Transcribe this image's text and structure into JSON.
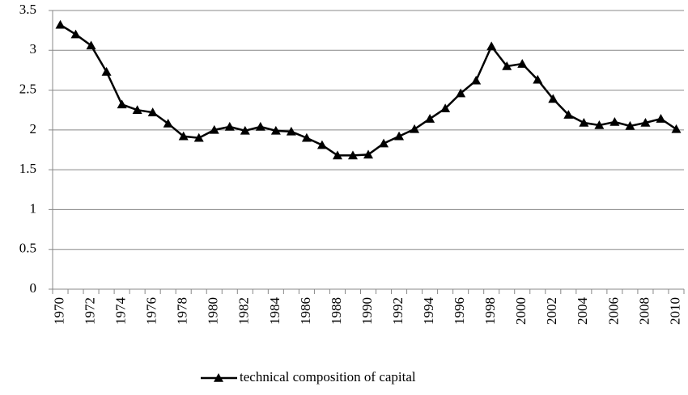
{
  "chart_data": {
    "type": "line",
    "categories": [
      "1970",
      null,
      "1972",
      null,
      "1974",
      null,
      "1976",
      null,
      "1978",
      null,
      "1980",
      null,
      "1982",
      null,
      "1984",
      null,
      "1986",
      null,
      "1988",
      null,
      "1990",
      null,
      "1992",
      null,
      "1994",
      null,
      "1996",
      null,
      "1998",
      null,
      "2000",
      null,
      "2002",
      null,
      "2004",
      null,
      "2006",
      null,
      "2008",
      null,
      "2010"
    ],
    "series": [
      {
        "name": "technical composition of capital",
        "color": "#000000",
        "values": [
          3.32,
          3.2,
          3.06,
          2.73,
          2.32,
          2.25,
          2.22,
          2.08,
          1.92,
          1.9,
          2.0,
          2.04,
          1.99,
          2.04,
          1.99,
          1.98,
          1.9,
          1.81,
          1.68,
          1.68,
          1.69,
          1.83,
          1.92,
          2.01,
          2.14,
          2.27,
          2.46,
          2.62,
          3.05,
          2.8,
          2.83,
          2.63,
          2.39,
          2.19,
          2.09,
          2.06,
          2.1,
          2.05,
          2.09,
          2.14,
          2.01
        ]
      }
    ],
    "ylim": [
      0,
      3.5
    ],
    "yticks": [
      0,
      0.5,
      1,
      1.5,
      2,
      2.5,
      3,
      3.5
    ],
    "grid": true,
    "legend": "bottom"
  }
}
